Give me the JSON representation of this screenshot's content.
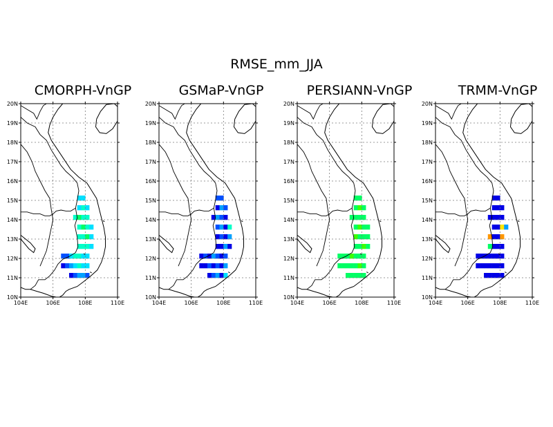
{
  "figure": {
    "title": "RMSE_mm_JJA"
  },
  "map": {
    "lon_range": [
      104,
      110
    ],
    "lat_range": [
      10,
      20
    ],
    "lon_ticks": [
      104,
      106,
      108,
      110
    ],
    "lat_ticks": [
      10,
      11,
      12,
      13,
      14,
      15,
      16,
      17,
      18,
      19,
      20
    ],
    "lon_labels": [
      "104E",
      "106E",
      "108E",
      "110E"
    ],
    "lat_labels": [
      "10N",
      "11N",
      "12N",
      "13N",
      "14N",
      "15N",
      "16N",
      "17N",
      "18N",
      "19N",
      "20N"
    ],
    "gridlines": "dotted"
  },
  "colors": {
    "dark_blue": "#0000e6",
    "blue": "#0050ff",
    "sky": "#00a0ff",
    "cyan": "#00e0ff",
    "teal": "#00ffc8",
    "green": "#00ff64",
    "lime": "#3cff00",
    "yellow": "#ffe600",
    "orange": "#ff9600"
  },
  "panels": [
    {
      "title": "CMORPH-VnGP",
      "region_color": "teal",
      "rows": [
        [
          "15.0",
          "107.5",
          "cyan",
          "cyan"
        ],
        [
          "14.5",
          "107.5",
          "cyan",
          "teal",
          "cyan"
        ],
        [
          "14.0",
          "107.25",
          "teal",
          "green",
          "teal",
          "teal"
        ],
        [
          "13.5",
          "107.5",
          "teal",
          "green",
          "teal",
          "cyan"
        ],
        [
          "13.0",
          "107.5",
          "teal",
          "teal",
          "green",
          "cyan"
        ],
        [
          "12.5",
          "107.5",
          "teal",
          "teal",
          "teal",
          "cyan"
        ],
        [
          "12.0",
          "106.5",
          "blue",
          "blue",
          "cyan",
          "teal",
          "teal",
          "cyan",
          "cyan"
        ],
        [
          "11.5",
          "106.5",
          "dark_blue",
          "blue",
          "sky",
          "cyan",
          "teal",
          "cyan",
          "cyan"
        ],
        [
          "11.0",
          "107.0",
          "dark_blue",
          "blue",
          "sky",
          "sky",
          "blue"
        ]
      ]
    },
    {
      "title": "GSMaP-VnGP",
      "region_color": "dark_blue",
      "rows": [
        [
          "15.0",
          "107.5",
          "blue",
          "blue"
        ],
        [
          "14.5",
          "107.5",
          "dark_blue",
          "sky",
          "blue"
        ],
        [
          "14.0",
          "107.25",
          "dark_blue",
          "sky",
          "blue",
          "dark_blue"
        ],
        [
          "13.5",
          "107.5",
          "blue",
          "sky",
          "dark_blue",
          "teal"
        ],
        [
          "13.0",
          "107.5",
          "dark_blue",
          "blue",
          "dark_blue",
          "sky"
        ],
        [
          "12.5",
          "107.5",
          "dark_blue",
          "dark_blue",
          "sky",
          "dark_blue"
        ],
        [
          "12.0",
          "106.5",
          "dark_blue",
          "blue",
          "dark_blue",
          "sky",
          "blue",
          "dark_blue",
          "blue"
        ],
        [
          "11.5",
          "106.5",
          "dark_blue",
          "dark_blue",
          "blue",
          "dark_blue",
          "blue",
          "dark_blue",
          "sky"
        ],
        [
          "11.0",
          "107.0",
          "dark_blue",
          "blue",
          "sky",
          "dark_blue",
          "cyan"
        ]
      ]
    },
    {
      "title": "PERSIANN-VnGP",
      "region_color": "green",
      "rows": [
        [
          "15.0",
          "107.5",
          "green",
          "green"
        ],
        [
          "14.5",
          "107.5",
          "green",
          "lime",
          "green"
        ],
        [
          "14.0",
          "107.25",
          "green",
          "green",
          "green",
          "green"
        ],
        [
          "13.5",
          "107.5",
          "green",
          "lime",
          "green",
          "green"
        ],
        [
          "13.0",
          "107.5",
          "lime",
          "green",
          "green",
          "green"
        ],
        [
          "12.5",
          "107.5",
          "green",
          "green",
          "lime",
          "green"
        ],
        [
          "12.0",
          "106.5",
          "green",
          "green",
          "green",
          "lime",
          "green",
          "green",
          "green"
        ],
        [
          "11.5",
          "106.5",
          "green",
          "green",
          "green",
          "green",
          "green",
          "lime",
          "green"
        ],
        [
          "11.0",
          "107.0",
          "green",
          "green",
          "green",
          "green",
          "green"
        ]
      ]
    },
    {
      "title": "TRMM-VnGP",
      "region_color": "dark_blue",
      "rows": [
        [
          "15.0",
          "107.5",
          "dark_blue",
          "dark_blue"
        ],
        [
          "14.5",
          "107.5",
          "dark_blue",
          "dark_blue",
          "dark_blue"
        ],
        [
          "14.0",
          "107.25",
          "dark_blue",
          "dark_blue",
          "dark_blue",
          "dark_blue"
        ],
        [
          "13.5",
          "107.5",
          "dark_blue",
          "dark_blue",
          "yellow",
          "sky"
        ],
        [
          "13.0",
          "107.25",
          "orange",
          "dark_blue",
          "dark_blue",
          "orange"
        ],
        [
          "12.5",
          "107.25",
          "green",
          "dark_blue",
          "dark_blue",
          "dark_blue"
        ],
        [
          "12.0",
          "106.5",
          "dark_blue",
          "dark_blue",
          "dark_blue",
          "dark_blue",
          "dark_blue",
          "dark_blue",
          "dark_blue"
        ],
        [
          "11.5",
          "106.5",
          "dark_blue",
          "dark_blue",
          "dark_blue",
          "dark_blue",
          "dark_blue",
          "dark_blue",
          "dark_blue"
        ],
        [
          "11.0",
          "107.0",
          "dark_blue",
          "dark_blue",
          "dark_blue",
          "dark_blue",
          "dark_blue"
        ]
      ]
    }
  ]
}
